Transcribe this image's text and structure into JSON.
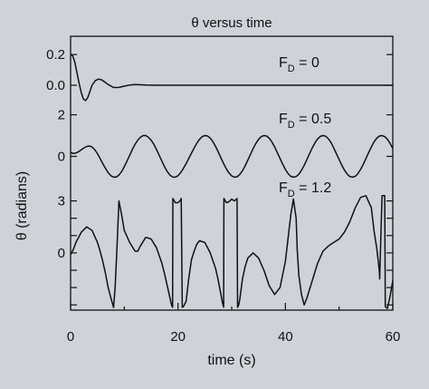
{
  "chart_data": {
    "type": "line",
    "title": "θ versus time",
    "xlabel": "time (s)",
    "ylabel": "θ (radians)",
    "xlim": [
      0,
      60
    ],
    "x_ticks": [
      0,
      20,
      40,
      60
    ],
    "panels": [
      {
        "label": "F_D = 0",
        "annotation": {
          "base": "F",
          "sub": "D",
          "rest": " = 0"
        },
        "ylim": [
          -0.13,
          0.26
        ],
        "y_ticks": [
          0.2,
          0.0
        ],
        "y_tick_labels": [
          "0.2",
          "0.0"
        ],
        "series": [
          {
            "x": [
              0,
              0.4,
              0.8,
              1.2,
              1.6,
              2,
              2.4,
              2.8,
              3.2,
              3.6,
              4,
              4.6,
              5.2,
              5.8,
              6.4,
              7,
              8,
              9,
              10,
              11,
              12,
              13,
              14,
              16,
              18,
              20,
              30,
              40,
              50,
              60
            ],
            "y": [
              0.2,
              0.19,
              0.15,
              0.08,
              0.01,
              -0.05,
              -0.09,
              -0.1,
              -0.08,
              -0.04,
              0,
              0.03,
              0.04,
              0.035,
              0.02,
              0.005,
              -0.015,
              -0.014,
              -0.006,
              0.001,
              0.004,
              0.003,
              0.001,
              0,
              0,
              0,
              0,
              0,
              0,
              0
            ]
          }
        ]
      },
      {
        "label": "F_D = 0.5",
        "annotation": {
          "base": "F",
          "sub": "D",
          "rest": " = 0.5"
        },
        "ylim": [
          -1.2,
          2.2
        ],
        "y_ticks": [
          2,
          0
        ],
        "y_tick_labels": [
          "2",
          "0"
        ],
        "series": [
          {
            "x": [
              0,
              0.5,
              1,
              1.5,
              2,
              2.5,
              3,
              3.5,
              4,
              4.5,
              5,
              5.5,
              6,
              6.5,
              7,
              7.5,
              8,
              8.5,
              9,
              9.5,
              10,
              10.5,
              11,
              11.5,
              12,
              12.5,
              13,
              13.5,
              14,
              14.5,
              15,
              15.5,
              16,
              16.5,
              17,
              17.5,
              18,
              18.5,
              19,
              19.5,
              20,
              20.5,
              21,
              21.5,
              22,
              22.5,
              23,
              23.5,
              24,
              24.5,
              25,
              25.5,
              26,
              26.5,
              27,
              27.5,
              28,
              28.5,
              29,
              29.5,
              30,
              30.5,
              31,
              31.5,
              32,
              32.5,
              33,
              33.5,
              34,
              34.5,
              35,
              35.5,
              36,
              36.5,
              37,
              37.5,
              38,
              38.5,
              39,
              39.5,
              40,
              40.5,
              41,
              41.5,
              42,
              42.5,
              43,
              43.5,
              44,
              44.5,
              45,
              45.5,
              46,
              46.5,
              47,
              47.5,
              48,
              48.5,
              49,
              49.5,
              50,
              50.5,
              51,
              51.5,
              52,
              52.5,
              53,
              53.5,
              54,
              54.5,
              55,
              55.5,
              56,
              56.5,
              57,
              57.5,
              58,
              58.5,
              59,
              59.5,
              60
            ],
            "y": [
              0.2,
              0.14,
              0.16,
              0.23,
              0.32,
              0.41,
              0.48,
              0.5,
              0.45,
              0.32,
              0.13,
              -0.1,
              -0.35,
              -0.58,
              -0.78,
              -0.93,
              -1,
              -0.99,
              -0.9,
              -0.73,
              -0.5,
              -0.23,
              0.05,
              0.33,
              0.58,
              0.78,
              0.92,
              1,
              1,
              0.92,
              0.78,
              0.58,
              0.33,
              0.05,
              -0.23,
              -0.5,
              -0.73,
              -0.9,
              -0.99,
              -1,
              -0.93,
              -0.78,
              -0.58,
              -0.35,
              -0.1,
              0.15,
              0.4,
              0.63,
              0.82,
              0.95,
              1,
              0.98,
              0.88,
              0.71,
              0.48,
              0.21,
              -0.07,
              -0.35,
              -0.6,
              -0.8,
              -0.94,
              -1,
              -0.98,
              -0.87,
              -0.69,
              -0.46,
              -0.18,
              0.1,
              0.38,
              0.62,
              0.82,
              0.95,
              1,
              0.98,
              0.87,
              0.69,
              0.45,
              0.18,
              -0.1,
              -0.38,
              -0.63,
              -0.83,
              -0.96,
              -1,
              -0.97,
              -0.86,
              -0.67,
              -0.43,
              -0.15,
              0.13,
              0.41,
              0.65,
              0.84,
              0.96,
              1,
              0.97,
              0.85,
              0.66,
              0.41,
              0.13,
              -0.15,
              -0.42,
              -0.66,
              -0.85,
              -0.97,
              -1,
              -0.96,
              -0.83,
              -0.63,
              -0.38,
              -0.1,
              0.18,
              0.45,
              0.69,
              0.87,
              0.98,
              1,
              0.95,
              0.82,
              0.62,
              0.38
            ]
          }
        ]
      },
      {
        "label": "F_D = 1.2",
        "annotation": {
          "base": "F",
          "sub": "D",
          "rest": " = 1.2"
        },
        "ylim": [
          -3.3,
          3.5
        ],
        "y_ticks": [
          3,
          2,
          1,
          0,
          -1,
          -2,
          -3
        ],
        "y_tick_labels": [
          "3",
          "",
          "",
          "0",
          "",
          "",
          ""
        ],
        "series": [
          {
            "x": [
              0,
              0.5,
              1,
              2,
              3,
              4,
              5,
              5.5,
              6,
              6.5,
              7,
              7.5,
              8,
              8.3,
              8.6,
              9,
              9.5,
              10,
              11,
              12,
              12.5,
              13,
              14,
              15,
              16,
              17,
              17.5,
              18,
              18.5,
              18.8,
              19,
              19.05,
              19.5,
              20,
              20.5,
              20.6,
              20.8,
              21,
              21.5,
              22,
              22.5,
              23,
              23.5,
              24,
              25,
              26,
              27,
              27.5,
              28,
              28.3,
              28.5,
              28.55,
              29,
              29.5,
              30,
              30.5,
              31,
              31.1,
              31.3,
              31.5,
              32,
              32.5,
              33,
              34,
              35,
              36,
              37,
              38,
              39,
              40,
              41,
              41.5,
              42,
              42.2,
              42.5,
              43,
              43.5,
              44,
              45,
              46,
              47,
              48,
              49,
              50,
              51,
              52,
              53,
              54,
              55,
              56,
              56.5,
              57,
              57.3,
              57.5,
              57.55,
              58,
              58.5,
              58.6,
              59,
              59.5,
              60
            ],
            "y": [
              -0.1,
              0.2,
              0.6,
              1.2,
              1.5,
              1.3,
              0.6,
              0.1,
              -0.5,
              -1.2,
              -2,
              -2.6,
              -3.15,
              -2,
              0,
              3,
              2.2,
              1.3,
              0.6,
              0.1,
              0.1,
              0.4,
              0.9,
              0.8,
              0.3,
              -0.6,
              -1.2,
              -1.9,
              -2.6,
              -3,
              -3.14,
              3.14,
              2.9,
              2.9,
              3.05,
              3.14,
              -3.14,
              -3.1,
              -2.8,
              -1.5,
              -0.4,
              0.1,
              0.5,
              0.7,
              0.6,
              0,
              -0.9,
              -1.6,
              -2.4,
              -2.9,
              -3.13,
              3.14,
              2.9,
              2.95,
              3.1,
              3,
              3.14,
              -3.14,
              -3,
              -2.7,
              -1.5,
              -0.8,
              -0.3,
              0,
              -0.3,
              -1,
              -1.9,
              -2.4,
              -2,
              -0.5,
              2.2,
              3.1,
              2,
              0.2,
              -1.3,
              -2.4,
              -3,
              -2.6,
              -1.6,
              -0.6,
              0.1,
              0.4,
              0.6,
              0.8,
              1.2,
              1.8,
              2.6,
              3.2,
              3.3,
              2.6,
              1.3,
              0.3,
              -0.5,
              -1.1,
              -1.5,
              3.3,
              3.3,
              -3.1,
              -3.2,
              -2.5,
              -1.6
            ]
          }
        ]
      }
    ]
  }
}
